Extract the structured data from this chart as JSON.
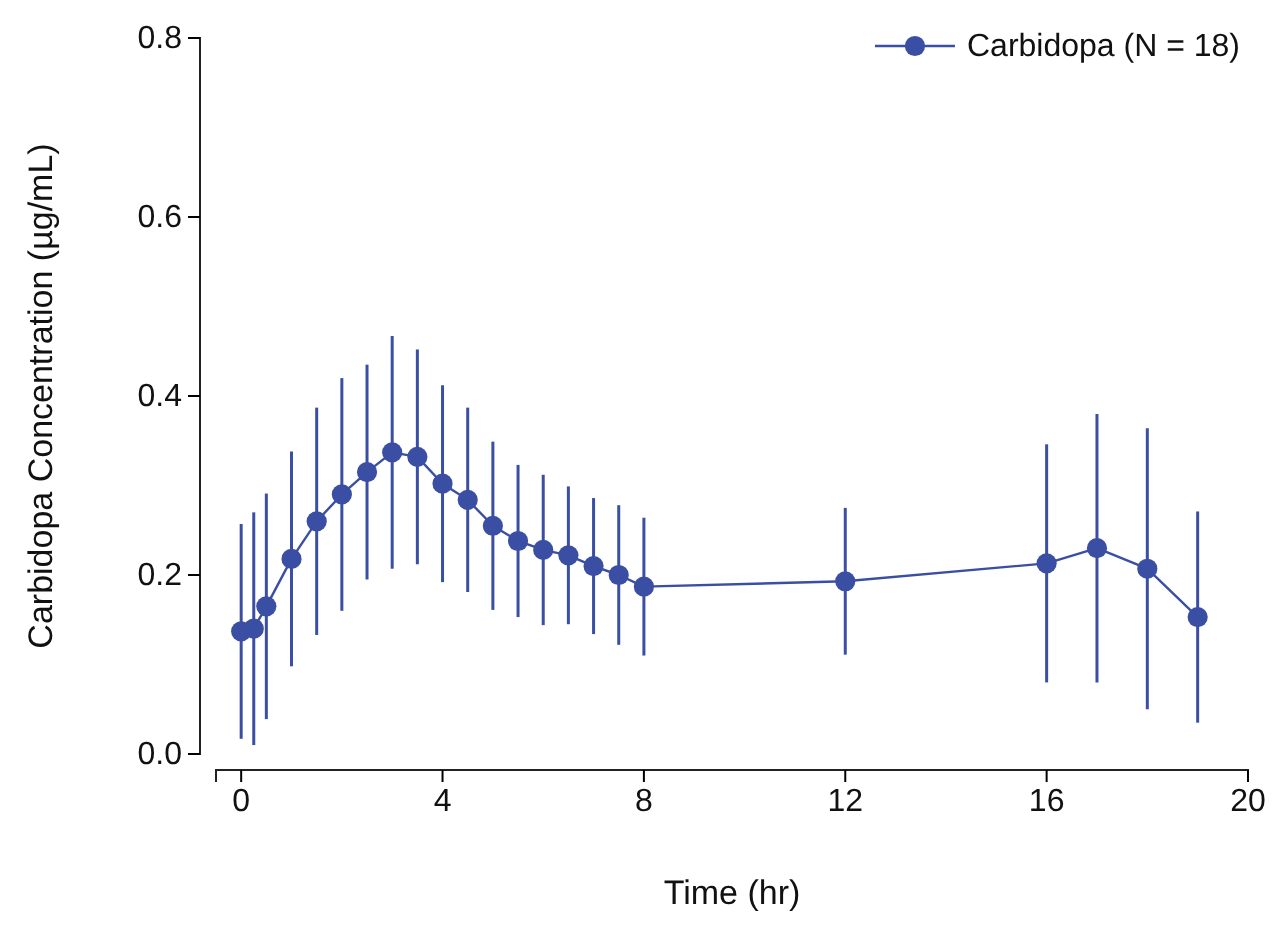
{
  "chart_data": {
    "type": "line",
    "xlabel": "Time (hr)",
    "ylabel": "Carbidopa Concentration (µg/mL)",
    "x": [
      0,
      0.25,
      0.5,
      1,
      1.5,
      2,
      2.5,
      3,
      3.5,
      4,
      4.5,
      5,
      5.5,
      6,
      6.5,
      7,
      7.5,
      8,
      12,
      16,
      17,
      18,
      19
    ],
    "series": [
      {
        "name": "Carbidopa (N = 18)",
        "color": "#3a4fa3",
        "values": [
          0.137,
          0.14,
          0.165,
          0.218,
          0.26,
          0.29,
          0.315,
          0.337,
          0.332,
          0.302,
          0.284,
          0.255,
          0.238,
          0.228,
          0.222,
          0.21,
          0.2,
          0.187,
          0.193,
          0.213,
          0.23,
          0.207,
          0.153
        ],
        "errors": [
          0.12,
          0.13,
          0.126,
          0.12,
          0.127,
          0.13,
          0.12,
          0.13,
          0.12,
          0.11,
          0.103,
          0.094,
          0.085,
          0.084,
          0.077,
          0.076,
          0.078,
          0.077,
          0.082,
          0.133,
          0.15,
          0.157,
          0.118
        ]
      }
    ],
    "xlim": [
      -0.5,
      20
    ],
    "xticks": [
      0,
      4,
      8,
      12,
      16,
      20
    ],
    "ylim": [
      0,
      0.8
    ],
    "yticks": [
      {
        "value": 0,
        "label": "0.0"
      },
      {
        "value": 0.2,
        "label": "0.2"
      },
      {
        "value": 0.4,
        "label": "0.4"
      },
      {
        "value": 0.6,
        "label": "0.6"
      },
      {
        "value": 0.8,
        "label": "0.8"
      }
    ],
    "grid": false,
    "legend": "top right",
    "marker": "circle",
    "line_style": "solid"
  }
}
